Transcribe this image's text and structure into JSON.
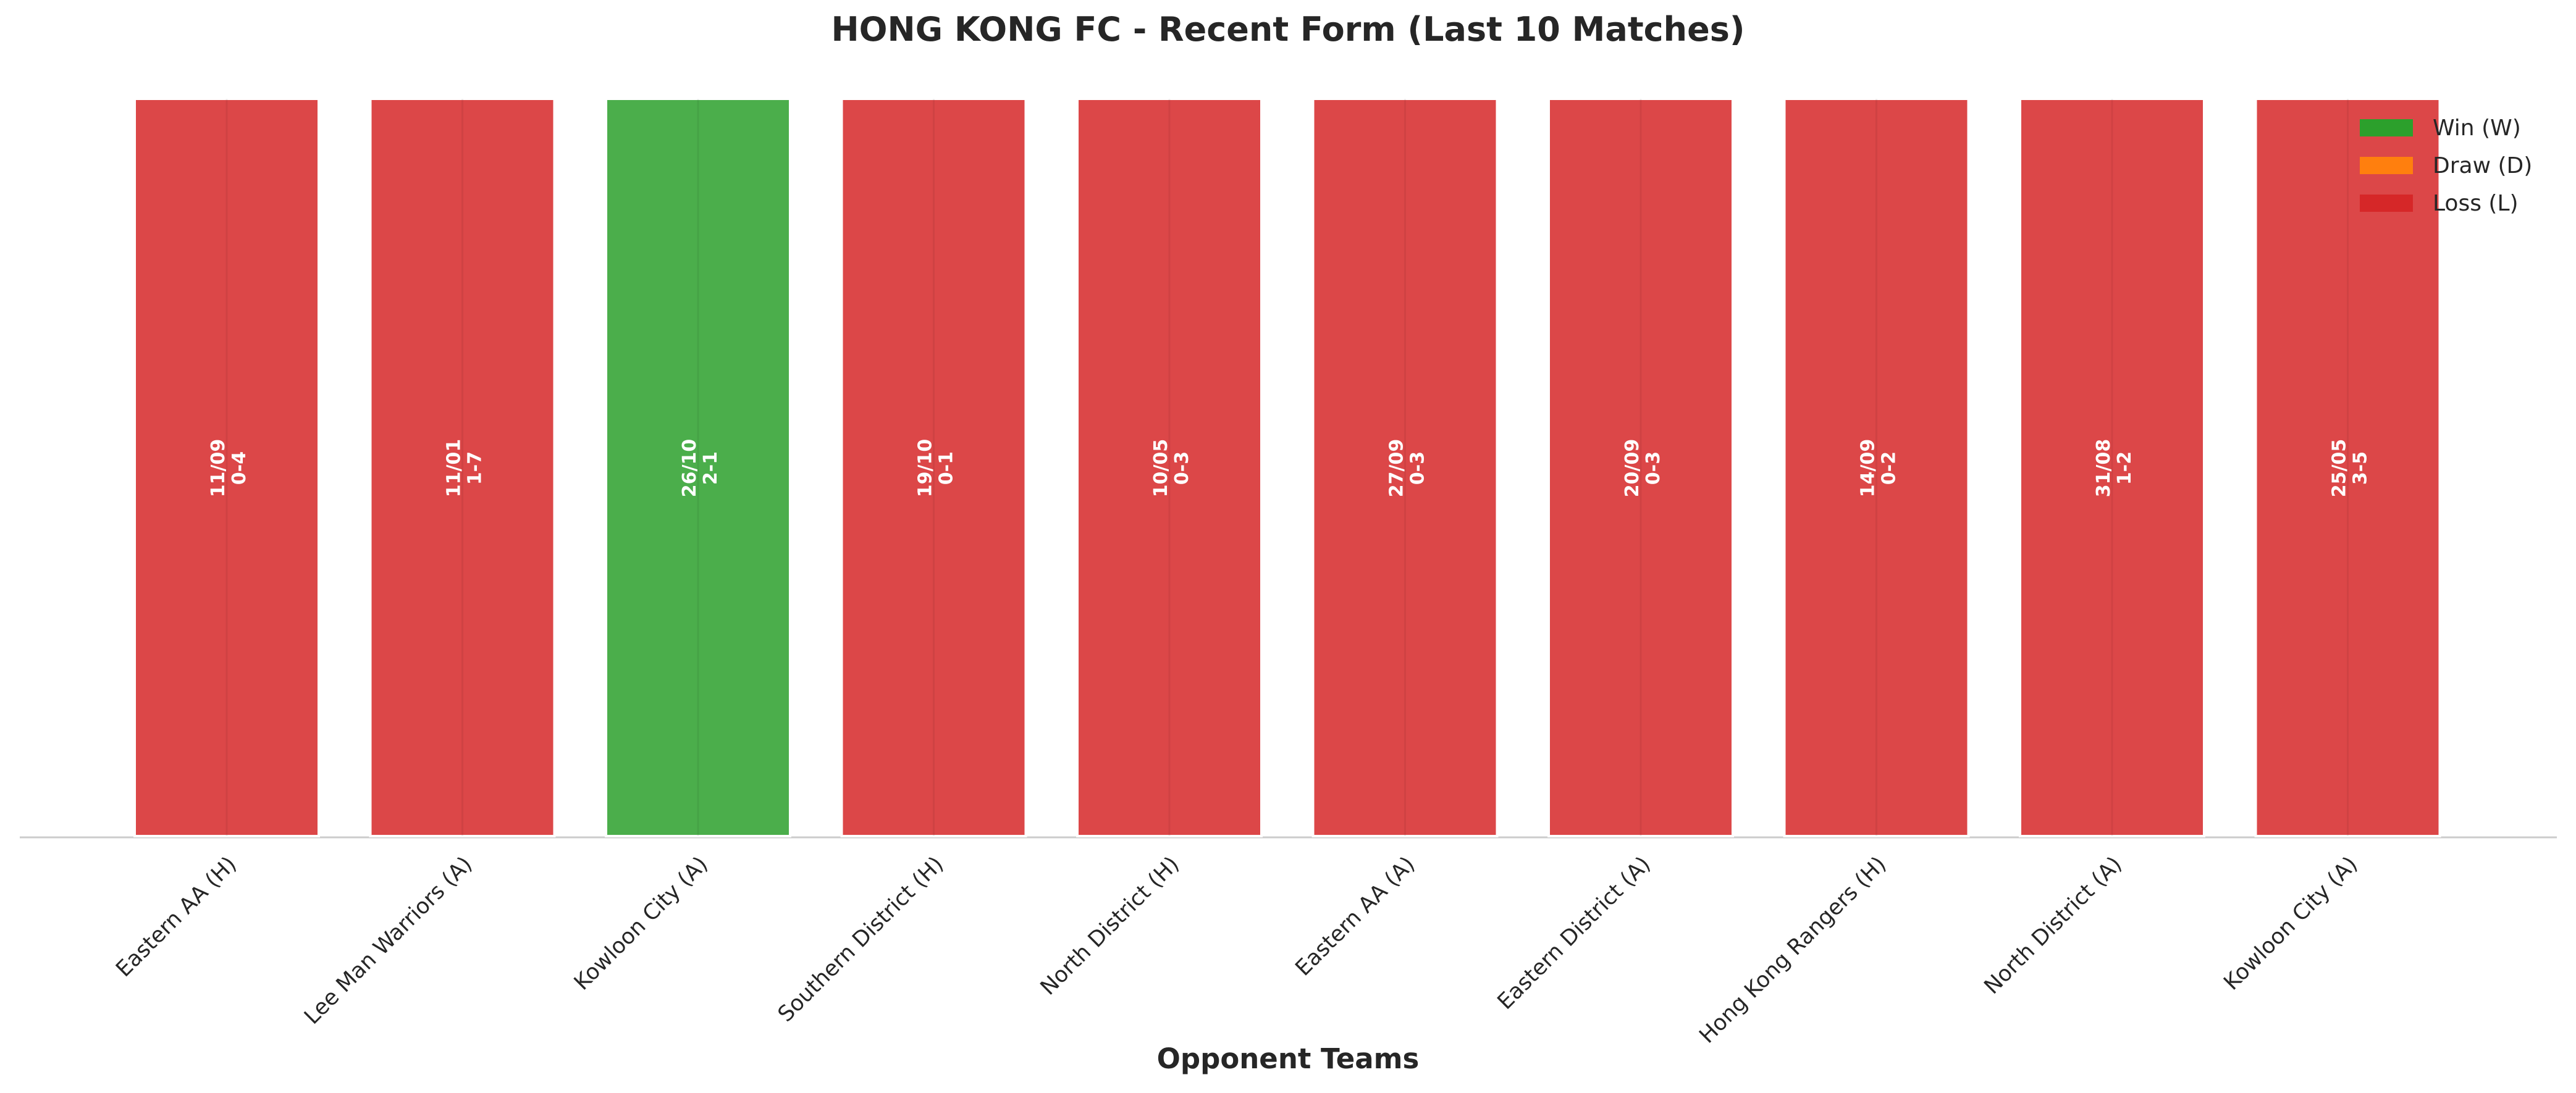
{
  "chart_data": {
    "type": "bar",
    "title": "HONG KONG FC - Recent Form (Last 10 Matches)",
    "x_label": "Opponent Teams",
    "categories": [
      "Eastern AA (H)",
      "Lee Man Warriors (A)",
      "Kowloon City (A)",
      "Southern District (H)",
      "North District (H)",
      "Eastern AA (A)",
      "Eastern District (A)",
      "Hong Kong Rangers (H)",
      "North District (A)",
      "Kowloon City (A)"
    ],
    "series": [
      {
        "name": "Win (W)",
        "color": "#2ca02c",
        "values": [
          null,
          null,
          1,
          null,
          null,
          null,
          null,
          null,
          null,
          null
        ]
      },
      {
        "name": "Draw (D)",
        "color": "#ff7f0e",
        "values": [
          null,
          null,
          null,
          null,
          null,
          null,
          null,
          null,
          null,
          null
        ]
      },
      {
        "name": "Loss (L)",
        "color": "#d62728",
        "values": [
          1,
          1,
          null,
          1,
          1,
          1,
          1,
          1,
          1,
          1
        ]
      }
    ],
    "annotations": [
      [
        "11/09",
        "0-4"
      ],
      [
        "11/01",
        "1-7"
      ],
      [
        "26/10",
        "2-1"
      ],
      [
        "19/10",
        "0-1"
      ],
      [
        "10/05",
        "0-3"
      ],
      [
        "27/09",
        "0-3"
      ],
      [
        "20/09",
        "0-3"
      ],
      [
        "14/09",
        "0-2"
      ],
      [
        "31/08",
        "1-2"
      ],
      [
        "25/05",
        "3-5"
      ]
    ],
    "ylim": [
      0,
      1
    ],
    "legend": "upper right"
  }
}
